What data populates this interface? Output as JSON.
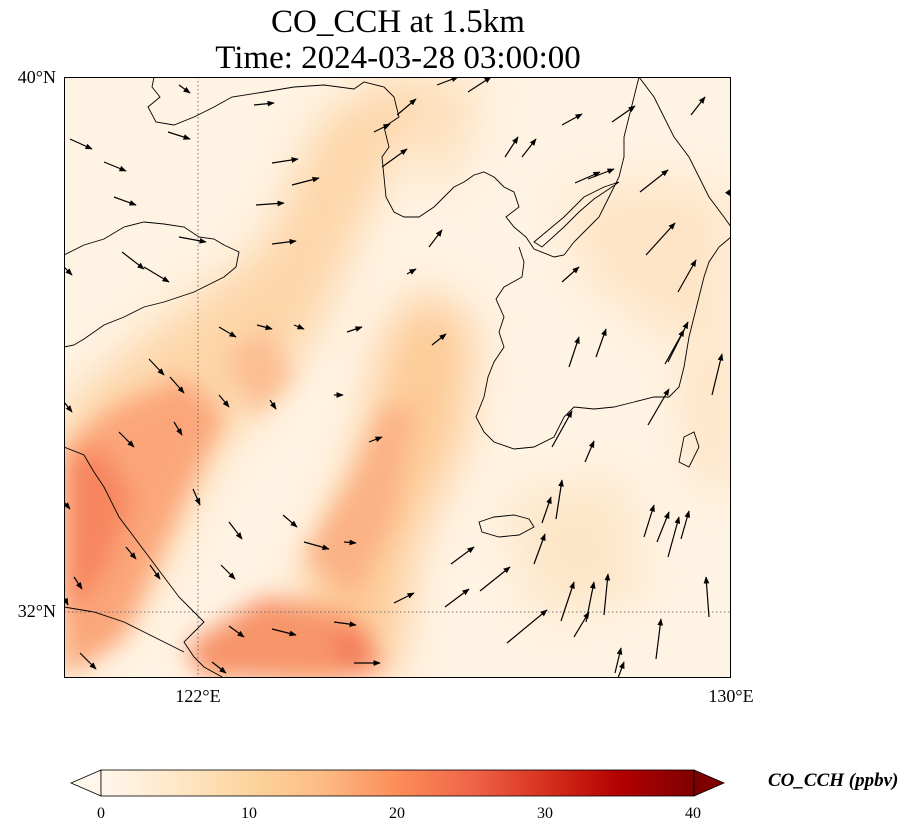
{
  "figure": {
    "title_line1": "CO_CCH at 1.5km",
    "title_line2": "Time: 2024-03-28 03:00:00"
  },
  "map": {
    "lat_range": [
      31.2,
      40
    ],
    "lon_range": [
      120,
      130
    ],
    "lat_ticks": [
      {
        "value": 32,
        "label": "32°N"
      },
      {
        "value": 40,
        "label": "40°N"
      }
    ],
    "lon_ticks": [
      {
        "value": 122,
        "label": "122°E"
      },
      {
        "value": 130,
        "label": "130°E"
      }
    ],
    "gridlines": "dotted",
    "field_colormap": "OrRd",
    "wind_vectors": "black arrows"
  },
  "colorbar": {
    "label": "CO_CCH (ppbv)",
    "min": 0,
    "max": 40,
    "extend": "both",
    "ticks": [
      "0",
      "10",
      "20",
      "30",
      "40"
    ],
    "colors": [
      "#fff7ec",
      "#fee8c8",
      "#fdd49e",
      "#fdbb84",
      "#fc8d59",
      "#ef6548",
      "#d7301f",
      "#b30000",
      "#7f0000"
    ]
  }
}
